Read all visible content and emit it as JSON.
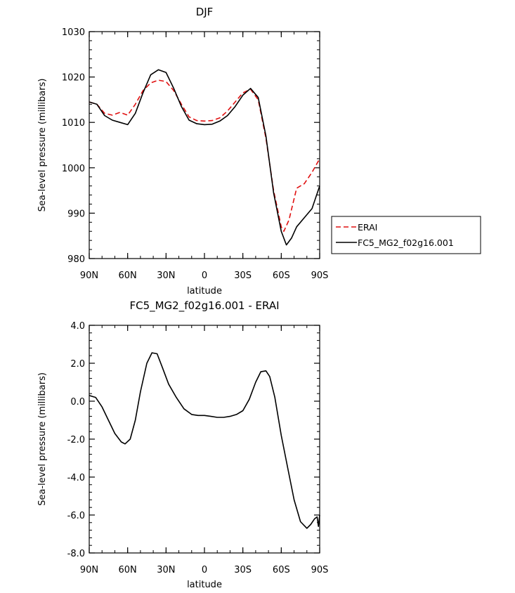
{
  "chart_data": [
    {
      "type": "line",
      "title": "DJF",
      "xlabel": "latitude",
      "ylabel": "Sea-level pressure (millibars)",
      "xlim": [
        90,
        -90
      ],
      "ylim": [
        980,
        1030
      ],
      "x_ticks": [
        90,
        60,
        30,
        0,
        -30,
        -60,
        -90
      ],
      "x_tick_labels": [
        "90N",
        "60N",
        "30N",
        "0",
        "30S",
        "60S",
        "90S"
      ],
      "y_ticks": [
        980,
        990,
        1000,
        1010,
        1020,
        1030
      ],
      "y_tick_labels": [
        "980",
        "990",
        "1000",
        "1010",
        "1020",
        "1030"
      ],
      "legend_position": "right",
      "series": [
        {
          "name": "ERAI",
          "color": "#e01010",
          "dash": "dashed",
          "x": [
            90,
            84,
            78,
            72,
            66,
            60,
            54,
            48,
            42,
            36,
            30,
            24,
            18,
            12,
            6,
            0,
            -6,
            -12,
            -18,
            -24,
            -30,
            -36,
            -42,
            -48,
            -54,
            -60,
            -62,
            -66,
            -72,
            -78,
            -84,
            -90
          ],
          "y": [
            1014.5,
            1014,
            1012,
            1011.6,
            1012.2,
            1011.6,
            1014,
            1017,
            1018.7,
            1019.3,
            1019,
            1017,
            1014,
            1011.2,
            1010.4,
            1010.3,
            1010.4,
            1011,
            1012.5,
            1014.5,
            1016.5,
            1017.3,
            1015,
            1006.5,
            995,
            987,
            986,
            988.5,
            995.5,
            996.5,
            999,
            1002
          ]
        },
        {
          "name": "FC5_MG2_f02g16.001",
          "color": "#000000",
          "dash": "solid",
          "x": [
            90,
            84,
            78,
            72,
            66,
            60,
            54,
            48,
            42,
            36,
            30,
            24,
            18,
            12,
            6,
            0,
            -6,
            -12,
            -18,
            -24,
            -30,
            -36,
            -42,
            -48,
            -54,
            -60,
            -64,
            -68,
            -72,
            -78,
            -84,
            -90
          ],
          "y": [
            1014.5,
            1014,
            1011.5,
            1010.5,
            1010,
            1009.5,
            1012,
            1016.5,
            1020.5,
            1021.6,
            1021,
            1017.5,
            1013.5,
            1010.5,
            1009.7,
            1009.5,
            1009.6,
            1010.3,
            1011.5,
            1013.5,
            1016,
            1017.5,
            1015.5,
            1007,
            994.5,
            986,
            983,
            984.5,
            987,
            989,
            991,
            996
          ]
        }
      ]
    },
    {
      "type": "line",
      "title": "FC5_MG2_f02g16.001 - ERAI",
      "xlabel": "latitude",
      "ylabel": "Sea-level pressure (millibars)",
      "xlim": [
        90,
        -90
      ],
      "ylim": [
        -8,
        4
      ],
      "x_ticks": [
        90,
        60,
        30,
        0,
        -30,
        -60,
        -90
      ],
      "x_tick_labels": [
        "90N",
        "60N",
        "30N",
        "0",
        "30S",
        "60S",
        "90S"
      ],
      "y_ticks": [
        -8,
        -6,
        -4,
        -2,
        0,
        2,
        4
      ],
      "y_tick_labels": [
        "-8.0",
        "-6.0",
        "-4.0",
        "-2.0",
        "0.0",
        "2.0",
        "4.0"
      ],
      "series": [
        {
          "color": "#000000",
          "dash": "solid",
          "x": [
            90,
            85,
            80,
            75,
            70,
            65,
            62,
            58,
            54,
            50,
            45,
            41,
            37,
            33,
            28,
            22,
            16,
            10,
            5,
            0,
            -5,
            -10,
            -15,
            -20,
            -25,
            -30,
            -35,
            -40,
            -44,
            -48,
            -51,
            -55,
            -60,
            -65,
            -70,
            -75,
            -80,
            -83,
            -86,
            -88,
            -89,
            -90
          ],
          "y": [
            0.3,
            0.2,
            -0.3,
            -1.0,
            -1.7,
            -2.15,
            -2.25,
            -2.0,
            -1.0,
            0.5,
            2.0,
            2.55,
            2.5,
            1.8,
            0.9,
            0.2,
            -0.4,
            -0.7,
            -0.75,
            -0.75,
            -0.8,
            -0.85,
            -0.85,
            -0.8,
            -0.7,
            -0.5,
            0.1,
            1.0,
            1.55,
            1.6,
            1.3,
            0.2,
            -1.8,
            -3.5,
            -5.2,
            -6.35,
            -6.7,
            -6.5,
            -6.2,
            -6.1,
            -6.6,
            -6.0
          ]
        }
      ]
    }
  ]
}
